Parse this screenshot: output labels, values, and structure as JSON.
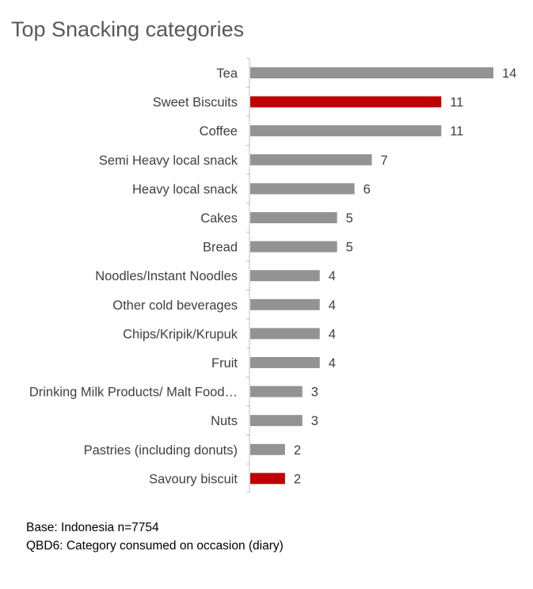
{
  "chart_data": {
    "type": "bar",
    "orientation": "horizontal",
    "title": "Top Snacking categories",
    "categories": [
      "Tea",
      "Sweet Biscuits",
      "Coffee",
      "Semi Heavy local snack",
      "Heavy local snack",
      "Cakes",
      "Bread",
      "Noodles/Instant Noodles",
      "Other cold beverages",
      "Chips/Kripik/Krupuk",
      "Fruit",
      "Drinking Milk Products/ Malt Food…",
      "Nuts",
      "Pastries (including donuts)",
      "Savoury biscuit"
    ],
    "values": [
      14,
      11,
      11,
      7,
      6,
      5,
      5,
      4,
      4,
      4,
      4,
      3,
      3,
      2,
      2
    ],
    "highlighted": [
      "Sweet Biscuits",
      "Savoury biscuit"
    ],
    "xlim": [
      0,
      14
    ],
    "grid": false,
    "legend": "none",
    "colors": {
      "default": "#939393",
      "highlight": "#c00000",
      "axis": "#bfbfbf",
      "text": "#404040"
    }
  },
  "notes": {
    "base": "Base: Indonesia n=7754",
    "question": "QBD6: Category consumed on occasion (diary)"
  }
}
